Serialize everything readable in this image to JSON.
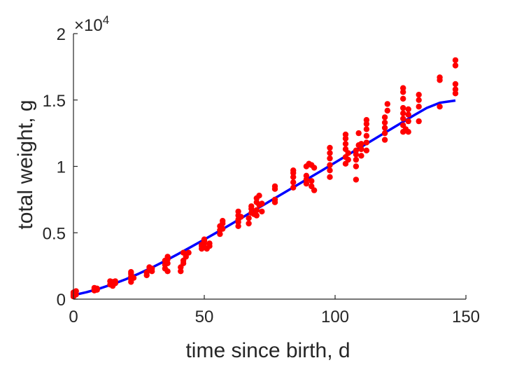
{
  "chart_data": {
    "type": "scatter",
    "xlabel": "time since birth, d",
    "ylabel": "total weight, g",
    "xlim": [
      0,
      150
    ],
    "ylim": [
      0,
      20000
    ],
    "xticks": [
      {
        "value": 0,
        "label": "0"
      },
      {
        "value": 50,
        "label": "50"
      },
      {
        "value": 100,
        "label": "100"
      },
      {
        "value": 150,
        "label": "150"
      }
    ],
    "yticks": [
      {
        "value": 0,
        "label": "0"
      },
      {
        "value": 5000,
        "label": "0.5"
      },
      {
        "value": 10000,
        "label": "1"
      },
      {
        "value": 15000,
        "label": "1.5"
      },
      {
        "value": 20000,
        "label": "2"
      }
    ],
    "y_exponent": {
      "base": "×10",
      "power": "4"
    },
    "grid": false,
    "colors": {
      "points": "#ff0000",
      "fit": "#0000ff",
      "axis": "#262626"
    },
    "series": [
      {
        "kind": "points",
        "values": [
          [
            0,
            200
          ],
          [
            0,
            300
          ],
          [
            0,
            400
          ],
          [
            0,
            500
          ],
          [
            1,
            350
          ],
          [
            1,
            600
          ],
          [
            8,
            650
          ],
          [
            8,
            750
          ],
          [
            8,
            850
          ],
          [
            9,
            700
          ],
          [
            9,
            800
          ],
          [
            14,
            1100
          ],
          [
            14,
            1350
          ],
          [
            15,
            1000
          ],
          [
            15,
            1300
          ],
          [
            16,
            1200
          ],
          [
            16,
            1350
          ],
          [
            22,
            1300
          ],
          [
            22,
            1500
          ],
          [
            22,
            1700
          ],
          [
            22,
            1900
          ],
          [
            22,
            2050
          ],
          [
            23,
            1600
          ],
          [
            28,
            1800
          ],
          [
            28,
            2000
          ],
          [
            29,
            2200
          ],
          [
            29,
            2400
          ],
          [
            30,
            2100
          ],
          [
            30,
            2300
          ],
          [
            35,
            2300
          ],
          [
            35,
            2600
          ],
          [
            35,
            2900
          ],
          [
            36,
            2100
          ],
          [
            36,
            2700
          ],
          [
            36,
            3000
          ],
          [
            36,
            3200
          ],
          [
            41,
            2100
          ],
          [
            41,
            2400
          ],
          [
            42,
            2700
          ],
          [
            42,
            2900
          ],
          [
            42,
            3500
          ],
          [
            43,
            3200
          ],
          [
            43,
            3400
          ],
          [
            44,
            3500
          ],
          [
            49,
            3800
          ],
          [
            49,
            4000
          ],
          [
            49,
            4100
          ],
          [
            50,
            3900
          ],
          [
            50,
            4200
          ],
          [
            50,
            4400
          ],
          [
            50,
            4500
          ],
          [
            51,
            3800
          ],
          [
            52,
            4000
          ],
          [
            52,
            4200
          ],
          [
            56,
            4900
          ],
          [
            56,
            5200
          ],
          [
            56,
            5500
          ],
          [
            57,
            5300
          ],
          [
            57,
            5700
          ],
          [
            57,
            5900
          ],
          [
            63,
            5500
          ],
          [
            63,
            5800
          ],
          [
            63,
            6000
          ],
          [
            63,
            6300
          ],
          [
            63,
            6600
          ],
          [
            64,
            6200
          ],
          [
            67,
            5700
          ],
          [
            67,
            6100
          ],
          [
            68,
            6500
          ],
          [
            68,
            6800
          ],
          [
            68,
            7000
          ],
          [
            69,
            6400
          ],
          [
            70,
            6300
          ],
          [
            70,
            6700
          ],
          [
            70,
            7300
          ],
          [
            70,
            7600
          ],
          [
            71,
            7800
          ],
          [
            71,
            7100
          ],
          [
            72,
            6600
          ],
          [
            72,
            7200
          ],
          [
            77,
            7300
          ],
          [
            77,
            7500
          ],
          [
            77,
            8300
          ],
          [
            77,
            8500
          ],
          [
            84,
            8400
          ],
          [
            84,
            8800
          ],
          [
            84,
            9200
          ],
          [
            84,
            9500
          ],
          [
            84,
            9700
          ],
          [
            89,
            8700
          ],
          [
            89,
            9000
          ],
          [
            89,
            9300
          ],
          [
            89,
            10000
          ],
          [
            90,
            10200
          ],
          [
            91,
            8500
          ],
          [
            91,
            8900
          ],
          [
            91,
            10100
          ],
          [
            92,
            8200
          ],
          [
            92,
            9900
          ],
          [
            98,
            9200
          ],
          [
            98,
            9700
          ],
          [
            98,
            10100
          ],
          [
            98,
            10600
          ],
          [
            98,
            11000
          ],
          [
            98,
            11400
          ],
          [
            104,
            10200
          ],
          [
            104,
            10700
          ],
          [
            104,
            11300
          ],
          [
            104,
            11700
          ],
          [
            104,
            12100
          ],
          [
            104,
            12400
          ],
          [
            105,
            10500
          ],
          [
            105,
            11000
          ],
          [
            108,
            9000
          ],
          [
            108,
            10000
          ],
          [
            108,
            10500
          ],
          [
            108,
            10900
          ],
          [
            108,
            11200
          ],
          [
            109,
            11600
          ],
          [
            109,
            12500
          ],
          [
            110,
            10800
          ],
          [
            110,
            11300
          ],
          [
            110,
            11700
          ],
          [
            112,
            11200
          ],
          [
            112,
            11800
          ],
          [
            112,
            12300
          ],
          [
            112,
            12800
          ],
          [
            112,
            13200
          ],
          [
            112,
            13500
          ],
          [
            119,
            12000
          ],
          [
            119,
            12500
          ],
          [
            119,
            12900
          ],
          [
            119,
            13300
          ],
          [
            119,
            13700
          ],
          [
            120,
            14200
          ],
          [
            120,
            14700
          ],
          [
            126,
            12600
          ],
          [
            126,
            13100
          ],
          [
            126,
            13600
          ],
          [
            126,
            14000
          ],
          [
            126,
            14400
          ],
          [
            126,
            15100
          ],
          [
            126,
            15600
          ],
          [
            126,
            15900
          ],
          [
            127,
            12800
          ],
          [
            128,
            12600
          ],
          [
            128,
            13400
          ],
          [
            128,
            13900
          ],
          [
            128,
            14300
          ],
          [
            132,
            13400
          ],
          [
            132,
            14500
          ],
          [
            132,
            15000
          ],
          [
            132,
            15400
          ],
          [
            140,
            14500
          ],
          [
            140,
            16500
          ],
          [
            140,
            16700
          ],
          [
            146,
            15500
          ],
          [
            146,
            15800
          ],
          [
            146,
            16200
          ],
          [
            146,
            17600
          ],
          [
            146,
            18000
          ]
        ]
      },
      {
        "kind": "fit",
        "x": [
          0,
          5,
          10,
          15,
          20,
          25,
          30,
          35,
          40,
          45,
          50,
          55,
          60,
          65,
          70,
          75,
          80,
          85,
          90,
          95,
          100,
          105,
          110,
          115,
          120,
          125,
          130,
          135,
          140,
          146
        ],
        "y": [
          300,
          520,
          800,
          1130,
          1500,
          1920,
          2380,
          2880,
          3400,
          3940,
          4490,
          5050,
          5620,
          6200,
          6790,
          7370,
          7950,
          8540,
          9120,
          9700,
          10290,
          10880,
          11470,
          12060,
          12650,
          13240,
          13830,
          14400,
          14790,
          14960
        ]
      }
    ]
  }
}
